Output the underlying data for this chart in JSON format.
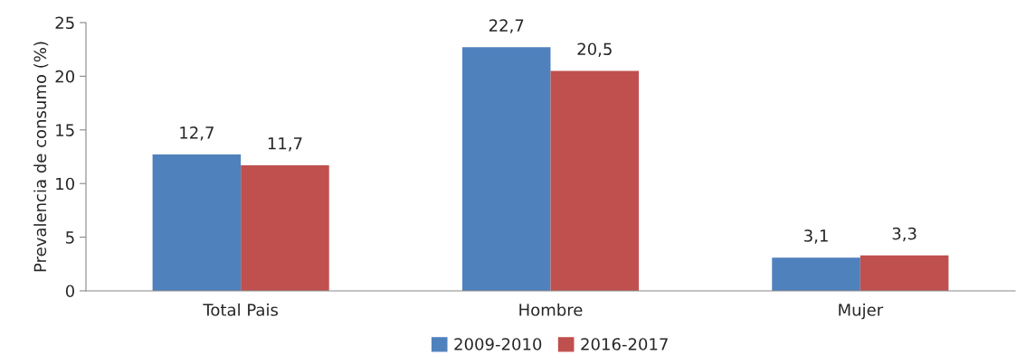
{
  "chart_data": {
    "type": "bar",
    "ylabel": "Prevalencia de consumo (%)",
    "categories": [
      "Total Pais",
      "Hombre",
      "Mujer"
    ],
    "series": [
      {
        "name": "2009-2010",
        "color": "#4f81bd",
        "values": [
          12.7,
          22.7,
          3.1
        ],
        "value_labels": [
          "12,7",
          "22,7",
          "3,1"
        ]
      },
      {
        "name": "2016-2017",
        "color": "#c0504d",
        "values": [
          11.7,
          20.5,
          3.3
        ],
        "value_labels": [
          "11,7",
          "20,5",
          "3,3"
        ]
      }
    ],
    "ylim": [
      0,
      25
    ],
    "yticks": [
      0,
      5,
      10,
      15,
      20,
      25
    ],
    "grid": false,
    "legend": "bottom"
  }
}
